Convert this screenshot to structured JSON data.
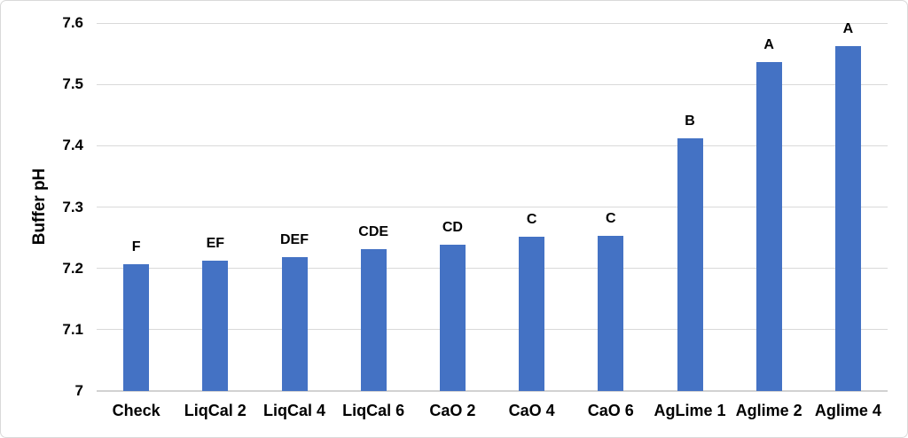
{
  "chart_data": {
    "type": "bar",
    "title": "",
    "xlabel": "",
    "ylabel": "Buffer pH",
    "categories": [
      "Check",
      "LiqCal 2",
      "LiqCal 4",
      "LiqCal 6",
      "CaO 2",
      "CaO 4",
      "CaO 6",
      "AgLime 1",
      "Aglime 2",
      "Aglime 4"
    ],
    "values": [
      7.207,
      7.213,
      7.218,
      7.232,
      7.239,
      7.251,
      7.253,
      7.412,
      7.537,
      7.562
    ],
    "bar_labels": [
      "F",
      "EF",
      "DEF",
      "CDE",
      "CD",
      "C",
      "C",
      "B",
      "A",
      "A"
    ],
    "ylim": [
      7.0,
      7.6
    ],
    "ytick_step": 0.1,
    "ytick_labels": [
      "7",
      "7.1",
      "7.2",
      "7.3",
      "7.4",
      "7.5",
      "7.6"
    ],
    "grid": true,
    "legend": false,
    "colors": {
      "bar": "#4472C4",
      "gridline": "#D9D9D9",
      "axis_line": "#D2D2D2",
      "text": "#000000",
      "border": "#D9D9D9"
    }
  }
}
